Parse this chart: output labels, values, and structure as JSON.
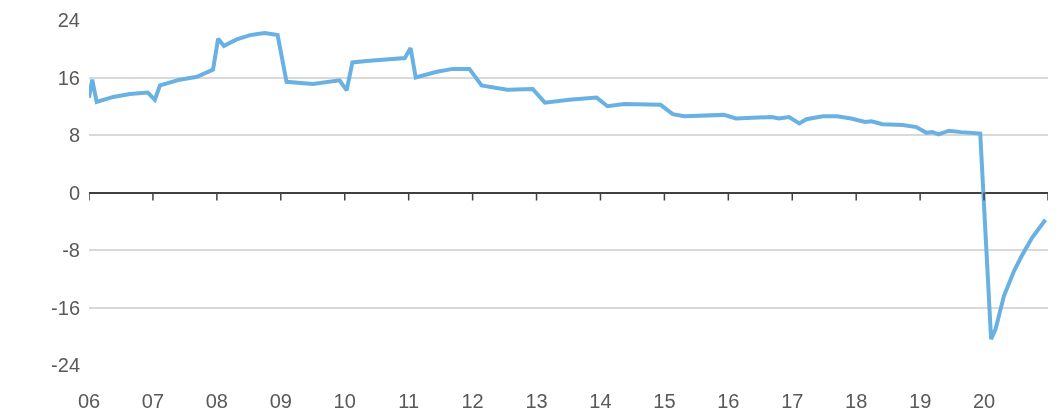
{
  "chart_data": {
    "type": "line",
    "x": [
      2006.0,
      2006.05,
      2006.12,
      2006.38,
      2006.64,
      2006.92,
      2007.03,
      2007.11,
      2007.42,
      2007.69,
      2007.94,
      2008.02,
      2008.11,
      2008.31,
      2008.52,
      2008.75,
      2008.95,
      2009.09,
      2009.5,
      2009.92,
      2010.03,
      2010.12,
      2010.34,
      2010.94,
      2011.03,
      2011.11,
      2011.44,
      2011.69,
      2011.95,
      2012.14,
      2012.54,
      2012.94,
      2013.13,
      2013.51,
      2013.94,
      2014.11,
      2014.37,
      2014.94,
      2015.13,
      2015.31,
      2015.93,
      2016.12,
      2016.68,
      2016.79,
      2016.95,
      2017.11,
      2017.22,
      2017.48,
      2017.7,
      2017.92,
      2018.14,
      2018.24,
      2018.41,
      2018.73,
      2018.94,
      2019.1,
      2019.19,
      2019.29,
      2019.45,
      2019.64,
      2019.94,
      2020.11,
      2020.18,
      2020.31,
      2020.47,
      2020.59,
      2020.75,
      2020.96
    ],
    "series": [
      {
        "color": "#69b1e3",
        "values": [
          13.2,
          15.7,
          12.6,
          13.3,
          13.7,
          13.9,
          12.9,
          14.9,
          15.7,
          16.1,
          17.1,
          21.4,
          20.4,
          21.3,
          21.9,
          22.2,
          21.9,
          15.4,
          15.1,
          15.6,
          14.2,
          18.1,
          18.3,
          18.7,
          20.1,
          16.0,
          16.8,
          17.2,
          17.2,
          14.9,
          14.3,
          14.4,
          12.5,
          12.9,
          13.2,
          12.0,
          12.3,
          12.2,
          10.9,
          10.6,
          10.8,
          10.3,
          10.5,
          10.3,
          10.5,
          9.6,
          10.2,
          10.6,
          10.6,
          10.3,
          9.8,
          9.9,
          9.5,
          9.4,
          9.1,
          8.3,
          8.4,
          8.1,
          8.6,
          8.4,
          8.2,
          -20.4,
          -19.0,
          -14.4,
          -10.9,
          -8.8,
          -6.3,
          -3.8
        ]
      }
    ],
    "xlim": [
      2006,
      2021
    ],
    "xticks": [
      {
        "value": 2006,
        "label": "06"
      },
      {
        "value": 2007,
        "label": "07"
      },
      {
        "value": 2008,
        "label": "08"
      },
      {
        "value": 2009,
        "label": "09"
      },
      {
        "value": 2010,
        "label": "10"
      },
      {
        "value": 2011,
        "label": "11"
      },
      {
        "value": 2012,
        "label": "12"
      },
      {
        "value": 2013,
        "label": "13"
      },
      {
        "value": 2014,
        "label": "14"
      },
      {
        "value": 2015,
        "label": "15"
      },
      {
        "value": 2016,
        "label": "16"
      },
      {
        "value": 2017,
        "label": "17"
      },
      {
        "value": 2018,
        "label": "18"
      },
      {
        "value": 2019,
        "label": "19"
      },
      {
        "value": 2020,
        "label": "20"
      },
      {
        "value": 2021,
        "label": null
      }
    ],
    "ylim": [
      -24,
      24
    ],
    "yticks": [
      -24,
      -16,
      -8,
      0,
      8,
      16,
      24
    ],
    "grid": "y",
    "marker": "none",
    "line_style": "solid"
  }
}
